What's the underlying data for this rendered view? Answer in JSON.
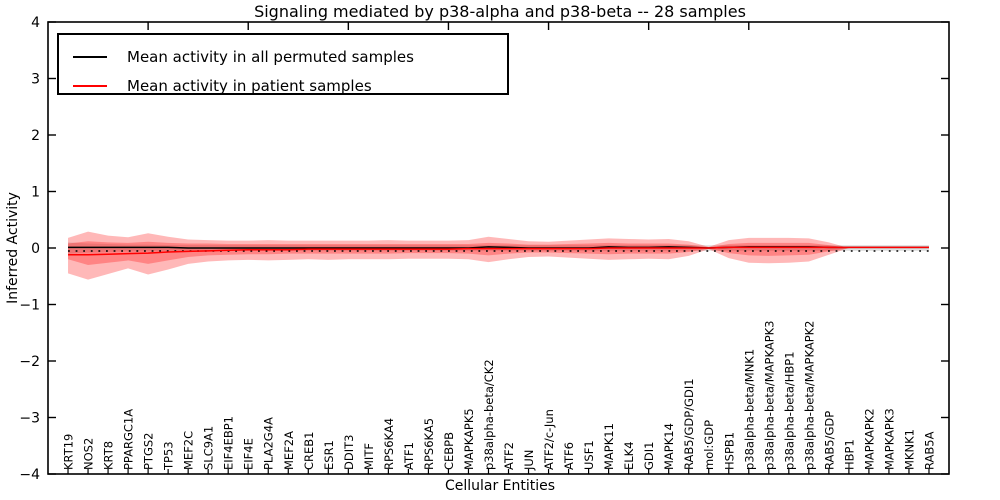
{
  "title": "Signaling mediated by p38-alpha and p38-beta -- 28 samples",
  "axes": {
    "xlabel": "Cellular Entities",
    "ylabel": "Inferred Activity",
    "ylim": [
      -4,
      4
    ],
    "yticks": [
      4,
      3,
      2,
      1,
      0,
      -1,
      -2,
      -3,
      -4
    ],
    "xticks_numeric": [
      5,
      10,
      15,
      20,
      25,
      30,
      35,
      40
    ]
  },
  "legend": {
    "items": [
      {
        "label": "Mean activity in all permuted samples",
        "color": "#000000"
      },
      {
        "label": "Mean activity in patient samples",
        "color": "#ff0000"
      }
    ],
    "position": "upper-left"
  },
  "colors": {
    "permuted_line": "#000000",
    "patient_line": "#ff0000",
    "patient_band": "rgba(255,0,0,0.28)",
    "permuted_band": "rgba(0,0,0,0.12)",
    "axis": "#000000"
  },
  "chart_data": {
    "type": "line",
    "title": "Signaling mediated by p38-alpha and p38-beta -- 28 samples",
    "xlabel": "Cellular Entities",
    "ylabel": "Inferred Activity",
    "ylim": [
      -4,
      4
    ],
    "grid": false,
    "legend_position": "upper-left",
    "categories": [
      "KRT19",
      "NOS2",
      "KRT8",
      "PPARGC1A",
      "PTGS2",
      "TP53",
      "MEF2C",
      "SLC9A1",
      "EIF4EBP1",
      "EIF4E",
      "PLA2G4A",
      "MEF2A",
      "CREB1",
      "ESR1",
      "DDIT3",
      "MITF",
      "RPS6KA4",
      "ATF1",
      "RPS6KA5",
      "CEBPB",
      "MAPKAPK5",
      "p38alpha-beta/CK2",
      "ATF2",
      "JUN",
      "ATF2/c-Jun",
      "ATF6",
      "USF1",
      "MAPK11",
      "ELK4",
      "GDI1",
      "MAPK14",
      "RAB5/GDP/GDI1",
      "mol:GDP",
      "HSPB1",
      "p38alpha-beta/MNK1",
      "p38alpha-beta/MAPKAPK3",
      "p38alpha-beta/HBP1",
      "p38alpha-beta/MAPKAPK2",
      "RAB5/GDP",
      "HBP1",
      "MAPKAPK2",
      "MAPKAPK3",
      "MKNK1",
      "RAB5A"
    ],
    "series": [
      {
        "name": "Mean activity in all permuted samples",
        "color": "#000000",
        "values": [
          0.01,
          0.01,
          0.01,
          0.01,
          0.01,
          0.01,
          0,
          0,
          0,
          0,
          0,
          0,
          0,
          0,
          0,
          0,
          0,
          0,
          0,
          0,
          0,
          0.02,
          0.01,
          0,
          0,
          0,
          0,
          0.02,
          0.01,
          0.01,
          0.02,
          0.01,
          0,
          0.01,
          0.02,
          0.02,
          0.02,
          0.02,
          0.01,
          0.01,
          0.01,
          0.01,
          0.01,
          0.01
        ]
      },
      {
        "name": "Mean activity in patient samples",
        "color": "#ff0000",
        "values": [
          -0.12,
          -0.12,
          -0.11,
          -0.1,
          -0.09,
          -0.07,
          -0.06,
          -0.05,
          -0.04,
          -0.03,
          -0.03,
          -0.03,
          -0.02,
          -0.02,
          -0.02,
          -0.02,
          -0.02,
          -0.02,
          -0.02,
          -0.02,
          -0.01,
          -0.01,
          -0.01,
          -0.01,
          -0.01,
          -0.01,
          -0.01,
          0,
          0,
          0,
          0,
          0,
          0,
          0.01,
          0.01,
          0.01,
          0.01,
          0.01,
          0.01,
          0.01,
          0.01,
          0.01,
          0.01,
          0.01
        ]
      }
    ],
    "bands": [
      {
        "name": "permuted-range",
        "color": "rgba(0,0,0,0.12)",
        "upper": [
          0.1,
          0.08,
          0.07,
          0.06,
          0.06,
          0.05,
          0.05,
          0.05,
          0.05,
          0.05,
          0.05,
          0.05,
          0.05,
          0.05,
          0.05,
          0.05,
          0.05,
          0.05,
          0.05,
          0.05,
          0.05,
          0.05,
          0.05,
          0.05,
          0.05,
          0.05,
          0.05,
          0.05,
          0.05,
          0.05,
          0.05,
          0.05,
          0.05,
          0.05,
          0.05,
          0.05,
          0.05,
          0.05,
          0.05,
          0.05,
          0.05,
          0.05,
          0.05,
          0.05
        ],
        "lower": [
          -0.1,
          -0.08,
          -0.07,
          -0.06,
          -0.06,
          -0.05,
          -0.05,
          -0.05,
          -0.05,
          -0.05,
          -0.05,
          -0.05,
          -0.05,
          -0.05,
          -0.05,
          -0.05,
          -0.05,
          -0.05,
          -0.05,
          -0.05,
          -0.05,
          -0.05,
          -0.05,
          -0.05,
          -0.05,
          -0.05,
          -0.05,
          -0.05,
          -0.05,
          -0.05,
          -0.05,
          -0.05,
          -0.05,
          -0.05,
          -0.05,
          -0.05,
          -0.05,
          -0.05,
          -0.05,
          -0.05,
          -0.05,
          -0.05,
          -0.05,
          -0.05
        ]
      },
      {
        "name": "patient-outer",
        "color": "rgba(255,0,0,0.28)",
        "upper": [
          0.18,
          0.29,
          0.22,
          0.19,
          0.26,
          0.2,
          0.15,
          0.14,
          0.13,
          0.13,
          0.14,
          0.13,
          0.13,
          0.13,
          0.13,
          0.13,
          0.14,
          0.13,
          0.13,
          0.13,
          0.14,
          0.2,
          0.16,
          0.12,
          0.11,
          0.13,
          0.15,
          0.17,
          0.16,
          0.15,
          0.16,
          0.12,
          0.02,
          0.14,
          0.18,
          0.18,
          0.18,
          0.17,
          0.1,
          0,
          0,
          0,
          0,
          0
        ],
        "lower": [
          -0.45,
          -0.56,
          -0.46,
          -0.36,
          -0.47,
          -0.38,
          -0.28,
          -0.24,
          -0.22,
          -0.21,
          -0.22,
          -0.21,
          -0.2,
          -0.21,
          -0.2,
          -0.2,
          -0.2,
          -0.19,
          -0.19,
          -0.19,
          -0.2,
          -0.25,
          -0.2,
          -0.16,
          -0.15,
          -0.17,
          -0.19,
          -0.21,
          -0.2,
          -0.19,
          -0.2,
          -0.14,
          -0.02,
          -0.18,
          -0.26,
          -0.27,
          -0.26,
          -0.24,
          -0.12,
          0,
          0,
          0,
          0,
          0
        ]
      },
      {
        "name": "patient-inner",
        "color": "rgba(255,0,0,0.28)",
        "upper": [
          0.08,
          0.12,
          0.1,
          0.09,
          0.11,
          0.09,
          0.08,
          0.08,
          0.07,
          0.07,
          0.07,
          0.07,
          0.07,
          0.07,
          0.07,
          0.07,
          0.07,
          0.07,
          0.07,
          0.07,
          0.07,
          0.09,
          0.08,
          0.06,
          0.06,
          0.07,
          0.08,
          0.09,
          0.08,
          0.08,
          0.08,
          0.06,
          0.01,
          0.07,
          0.09,
          0.09,
          0.09,
          0.09,
          0.05,
          0,
          0,
          0,
          0,
          0
        ],
        "lower": [
          -0.2,
          -0.3,
          -0.26,
          -0.22,
          -0.28,
          -0.22,
          -0.16,
          -0.13,
          -0.12,
          -0.11,
          -0.11,
          -0.1,
          -0.1,
          -0.1,
          -0.1,
          -0.1,
          -0.1,
          -0.09,
          -0.09,
          -0.09,
          -0.1,
          -0.13,
          -0.1,
          -0.08,
          -0.08,
          -0.09,
          -0.1,
          -0.11,
          -0.1,
          -0.1,
          -0.1,
          -0.07,
          -0.01,
          -0.09,
          -0.13,
          -0.14,
          -0.13,
          -0.12,
          -0.06,
          0,
          0,
          0,
          0,
          0
        ]
      }
    ]
  }
}
